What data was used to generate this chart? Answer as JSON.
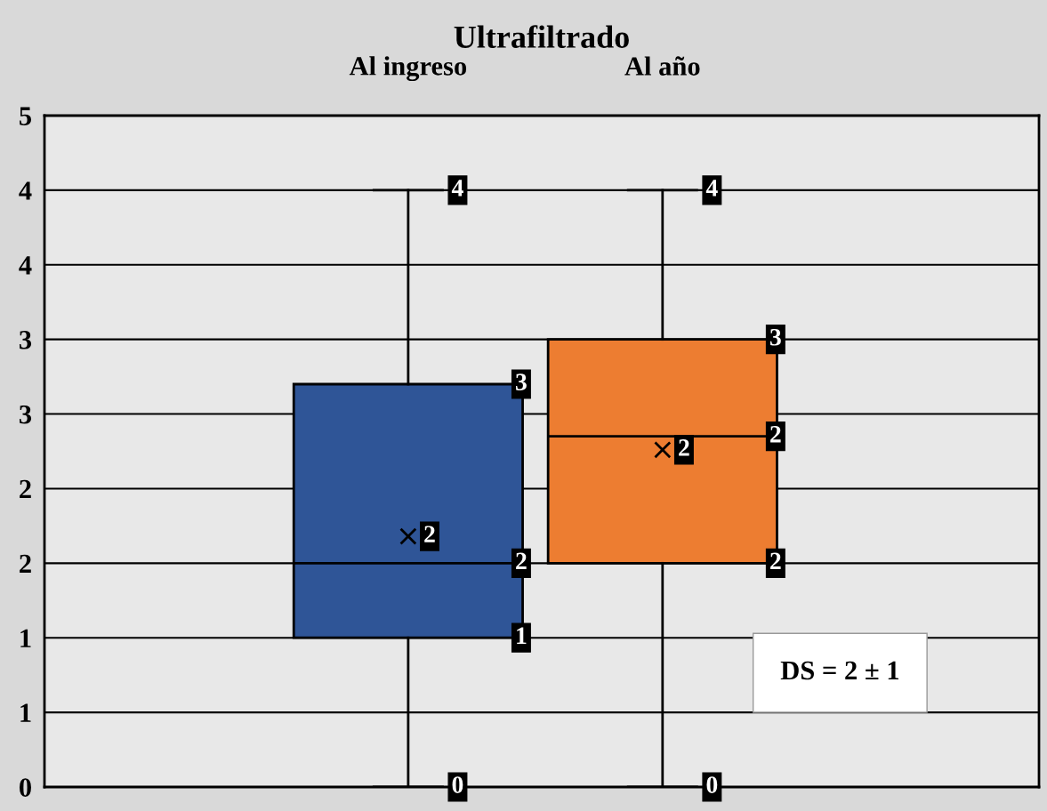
{
  "chart_data": {
    "type": "box",
    "title": "Ultrafiltrado",
    "categories": [
      "Al ingreso",
      "Al año"
    ],
    "colors": [
      "#2f5597",
      "#ed7d31"
    ],
    "boxes": [
      {
        "low": 0,
        "q1": 1,
        "median": 1.5,
        "q3": 2.7,
        "high": 4,
        "mean": 1.68
      },
      {
        "low": 0,
        "q1": 1.5,
        "median": 2.35,
        "q3": 3,
        "high": 4,
        "mean": 2.26
      }
    ],
    "ylim": [
      0,
      4.5
    ],
    "yticks": [
      0,
      {
        "value": 0.5,
        "label": "1"
      },
      1,
      {
        "value": 1.5,
        "label": "2"
      },
      2,
      {
        "value": 2.5,
        "label": "3"
      },
      3,
      {
        "value": 3.5,
        "label": "4"
      },
      4,
      {
        "value": 4.5,
        "label": "5"
      }
    ],
    "grid": "y",
    "legend": false,
    "annotations": [
      {
        "text": "4",
        "x": "Al ingreso",
        "y": 4
      },
      "3",
      "2",
      {
        "text": "2",
        "x": "Al ingreso",
        "y": 1.5
      },
      "1",
      {
        "text": "0",
        "x": "Al ingreso",
        "y": 0
      },
      {
        "text": "4",
        "x": "Al año",
        "y": 4
      },
      "3",
      {
        "text": "2",
        "x": "Al año",
        "y": 2.35
      },
      "2",
      "2",
      {
        "text": "0",
        "x": "Al año",
        "y": 0
      },
      "DS = 2 ± 1"
    ]
  }
}
